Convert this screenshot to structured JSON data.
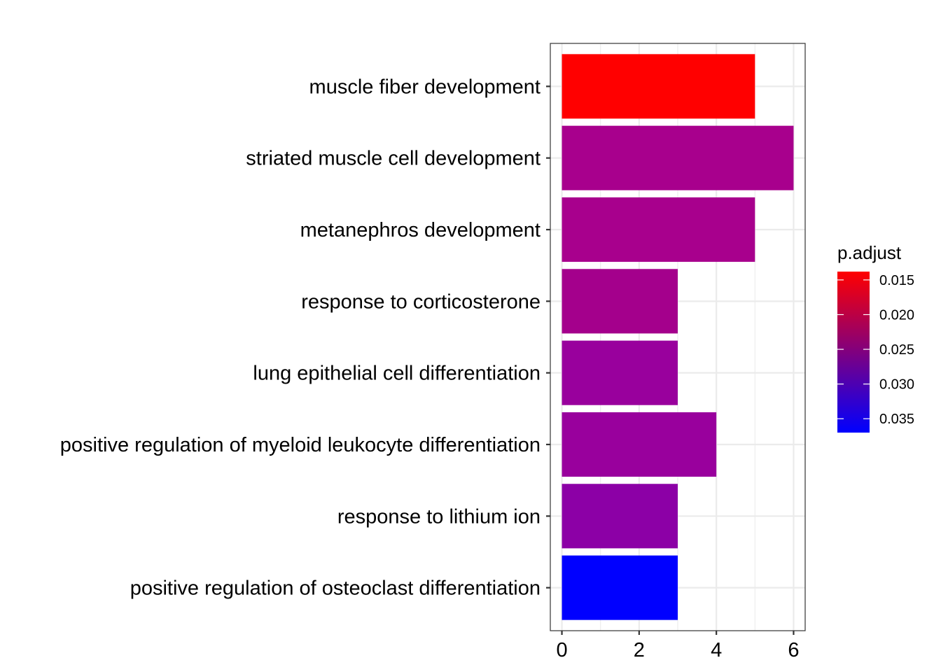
{
  "chart_data": {
    "type": "bar",
    "orientation": "horizontal",
    "categories": [
      "muscle fiber development",
      "striated muscle cell development",
      "metanephros development",
      "response to corticosterone",
      "lung epithelial cell differentiation",
      "positive regulation of myeloid leukocyte differentiation",
      "response to lithium ion",
      "positive regulation of osteoclast differentiation"
    ],
    "values": [
      5,
      6,
      5,
      3,
      3,
      4,
      3,
      3
    ],
    "p_adjust": [
      0.0138,
      0.0255,
      0.0255,
      0.0262,
      0.0282,
      0.0282,
      0.0296,
      0.037
    ],
    "bar_colors": [
      "#ff0000",
      "#a8008d",
      "#a8008d",
      "#a4008c",
      "#99009d",
      "#99009d",
      "#8c00a6",
      "#0000ff"
    ],
    "xlim": [
      -0.3,
      6.3
    ],
    "x_ticks": [
      "0",
      "2",
      "4",
      "6"
    ],
    "grid": true,
    "legend": {
      "title": "p.adjust",
      "placement": "right",
      "range": [
        0.0138,
        0.037
      ],
      "ticks": [
        "0.015",
        "0.020",
        "0.025",
        "0.030",
        "0.035"
      ],
      "color_low_value": "#ff0000",
      "color_high_value": "#0000ff"
    }
  }
}
